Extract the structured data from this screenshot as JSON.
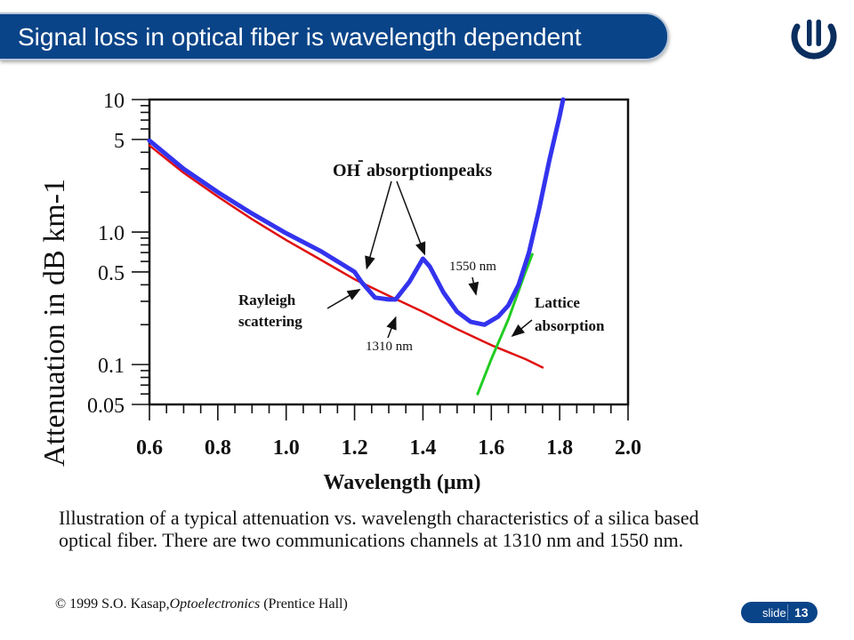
{
  "slide": {
    "title": "Signal loss in optical fiber is wavelength dependent",
    "slide_label": "slide",
    "slide_number": "13",
    "caption": "Illustration of a typical attenuation vs. wavelength characteristics of a silica based optical fiber. There are two communications channels at 1310 nm and 1550 nm.",
    "copyright_prefix": "© 1999 S.O. Kasap,",
    "copyright_book": "Optoelectronics",
    "copyright_suffix": " (Prentice Hall)",
    "colors": {
      "title_bg": "#0a4488",
      "measured": "#3333ee",
      "rayleigh": "#e01010",
      "lattice": "#22cc22"
    }
  },
  "chart_data": {
    "type": "line",
    "xlabel": "Wavelength (μm)",
    "ylabel": "Attenuation in dB km-1",
    "xlim": [
      0.6,
      2.0
    ],
    "ylim": [
      0.05,
      10
    ],
    "yscale": "log",
    "x_ticks": [
      "0.6",
      "0.8",
      "1.0",
      "1.2",
      "1.4",
      "1.6",
      "1.8",
      "2.0"
    ],
    "y_ticks": [
      "10",
      "5",
      "1.0",
      "0.5",
      "0.1",
      "0.05"
    ],
    "series": [
      {
        "values": [
          [
            0.6,
            4.9
          ],
          [
            0.7,
            3.0
          ],
          [
            0.8,
            2.0
          ],
          [
            0.9,
            1.38
          ],
          [
            1.0,
            0.98
          ],
          [
            1.1,
            0.72
          ],
          [
            1.15,
            0.6
          ],
          [
            1.2,
            0.5
          ],
          [
            1.22,
            0.42
          ],
          [
            1.26,
            0.32
          ],
          [
            1.3,
            0.31
          ],
          [
            1.32,
            0.31
          ],
          [
            1.36,
            0.42
          ],
          [
            1.4,
            0.63
          ],
          [
            1.42,
            0.55
          ],
          [
            1.46,
            0.35
          ],
          [
            1.5,
            0.25
          ],
          [
            1.54,
            0.21
          ],
          [
            1.58,
            0.2
          ],
          [
            1.62,
            0.23
          ],
          [
            1.65,
            0.28
          ],
          [
            1.68,
            0.4
          ],
          [
            1.71,
            0.7
          ],
          [
            1.74,
            1.5
          ],
          [
            1.77,
            3.5
          ],
          [
            1.8,
            7.5
          ],
          [
            1.81,
            10
          ]
        ]
      },
      {
        "values": [
          [
            0.6,
            4.5
          ],
          [
            0.7,
            2.8
          ],
          [
            0.8,
            1.85
          ],
          [
            0.9,
            1.25
          ],
          [
            1.0,
            0.87
          ],
          [
            1.1,
            0.62
          ],
          [
            1.2,
            0.44
          ],
          [
            1.3,
            0.33
          ],
          [
            1.4,
            0.25
          ],
          [
            1.5,
            0.185
          ],
          [
            1.6,
            0.14
          ],
          [
            1.7,
            0.11
          ],
          [
            1.75,
            0.095
          ]
        ]
      },
      {
        "values": [
          [
            1.56,
            0.06
          ],
          [
            1.6,
            0.11
          ],
          [
            1.65,
            0.22
          ],
          [
            1.7,
            0.5
          ],
          [
            1.72,
            0.68
          ]
        ]
      }
    ],
    "annotations": [
      {
        "text": "OH",
        "superscript": "-",
        "text2": " absorptionpeaks",
        "points_to": [
          [
            1.22,
            0.5
          ],
          [
            1.4,
            0.6
          ]
        ]
      },
      {
        "text": "Rayleigh",
        "text2": "scattering",
        "points_to": [
          [
            1.22,
            0.38
          ]
        ]
      },
      {
        "text": "1310 nm",
        "points_to": [
          [
            1.31,
            0.3
          ]
        ]
      },
      {
        "text": "1550 nm",
        "points_to": [
          [
            1.55,
            0.2
          ]
        ]
      },
      {
        "text": "Lattice",
        "text2": "absorption",
        "points_to": [
          [
            1.63,
            0.18
          ]
        ]
      }
    ]
  }
}
